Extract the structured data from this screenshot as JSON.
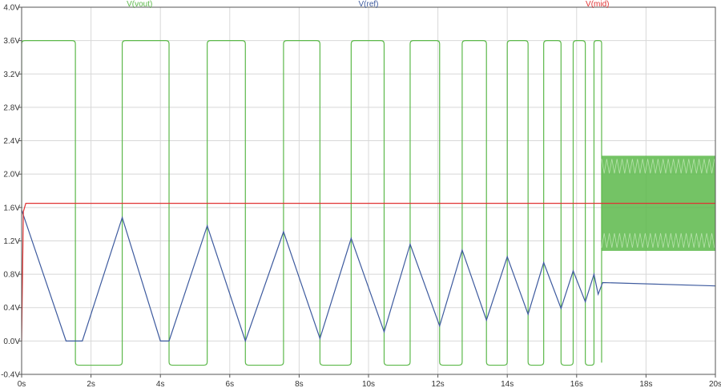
{
  "chart_data": {
    "type": "line",
    "xlim": [
      0,
      20
    ],
    "ylim": [
      -0.4,
      4.0
    ],
    "x_unit": "s",
    "y_unit": "V",
    "x_ticks": [
      "0s",
      "2s",
      "4s",
      "6s",
      "8s",
      "10s",
      "12s",
      "14s",
      "16s",
      "18s",
      "20s"
    ],
    "y_ticks": [
      "4.0V",
      "3.6V",
      "3.2V",
      "2.8V",
      "2.4V",
      "2.0V",
      "1.6V",
      "1.2V",
      "0.8V",
      "0.4V",
      "0.0V",
      "-0.4V"
    ],
    "grid": true,
    "legend_position": "top",
    "series": [
      {
        "name": "V(vout)",
        "color": "#5cb84a",
        "style": "square-wave",
        "high": 3.6,
        "low": -0.29,
        "transitions": [
          0.0,
          1.55,
          2.9,
          4.25,
          5.35,
          6.45,
          7.55,
          8.6,
          9.5,
          10.45,
          11.2,
          12.05,
          12.7,
          13.4,
          14.0,
          14.6,
          15.05,
          15.55,
          15.9,
          16.25,
          16.5,
          16.72
        ],
        "band_start": 16.72,
        "band_end": 20.0,
        "band_min": 1.08,
        "band_max": 2.22
      },
      {
        "name": "V(ref)",
        "color": "#3d5a9e",
        "x": [
          0.0,
          1.28,
          1.75,
          2.9,
          4.0,
          4.25,
          5.35,
          6.45,
          7.55,
          8.6,
          9.5,
          10.45,
          11.2,
          12.05,
          12.7,
          13.4,
          14.0,
          14.6,
          15.05,
          15.55,
          15.9,
          16.25,
          16.5,
          16.62,
          16.75,
          20.0
        ],
        "y": [
          1.57,
          0.0,
          0.0,
          1.48,
          0.0,
          0.0,
          1.38,
          0.0,
          1.31,
          0.03,
          1.23,
          0.11,
          1.16,
          0.18,
          1.09,
          0.25,
          1.01,
          0.32,
          0.94,
          0.39,
          0.84,
          0.47,
          0.8,
          0.56,
          0.7,
          0.66
        ]
      },
      {
        "name": "V(mid)",
        "color": "#e03232",
        "x": [
          0.0,
          0.05,
          0.12,
          20.0
        ],
        "y": [
          0.0,
          1.55,
          1.65,
          1.65
        ]
      }
    ]
  }
}
